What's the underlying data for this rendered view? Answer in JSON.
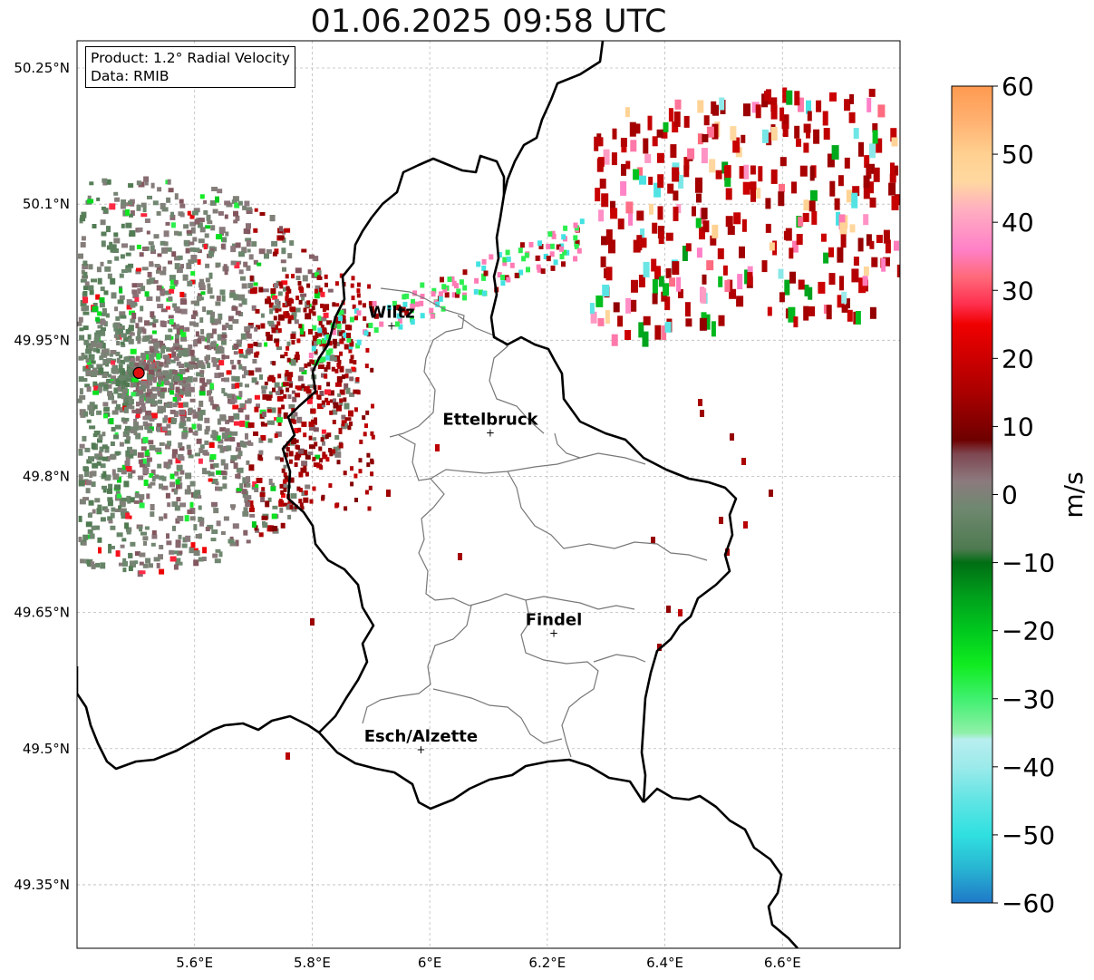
{
  "title": "01.06.2025 09:58 UTC",
  "info": {
    "product": "Product: 1.2° Radial Velocity",
    "data": "Data: RMIB"
  },
  "map": {
    "lon_range": [
      5.4,
      6.8
    ],
    "lat_range": [
      49.28,
      50.28
    ],
    "gridlines": true,
    "x_ticks": [
      {
        "value": 5.6,
        "label": "5.6°E"
      },
      {
        "value": 5.8,
        "label": "5.8°E"
      },
      {
        "value": 6.0,
        "label": "6°E"
      },
      {
        "value": 6.2,
        "label": "6.2°E"
      },
      {
        "value": 6.4,
        "label": "6.4°E"
      },
      {
        "value": 6.6,
        "label": "6.6°E"
      }
    ],
    "y_ticks": [
      {
        "value": 50.25,
        "label": "50.25°N"
      },
      {
        "value": 50.1,
        "label": "50.1°N"
      },
      {
        "value": 49.95,
        "label": "49.95°N"
      },
      {
        "value": 49.8,
        "label": "49.8°N"
      },
      {
        "value": 49.65,
        "label": "49.65°N"
      },
      {
        "value": 49.5,
        "label": "49.5°N"
      },
      {
        "value": 49.35,
        "label": "49.35°N"
      }
    ],
    "radar_site": {
      "lon": 5.505,
      "lat": 49.914,
      "color": "#e01010"
    },
    "cities": [
      {
        "name": "Wiltz",
        "lon": 5.935,
        "lat": 49.966
      },
      {
        "name": "Ettelbruck",
        "lon": 6.103,
        "lat": 49.848
      },
      {
        "name": "Findel",
        "lon": 6.211,
        "lat": 49.627
      },
      {
        "name": "Esch/Alzette",
        "lon": 5.985,
        "lat": 49.499
      }
    ]
  },
  "colorbar": {
    "label": "m/s",
    "min": -60,
    "max": 60,
    "ticks": [
      {
        "value": 60,
        "label": "60"
      },
      {
        "value": 50,
        "label": "50"
      },
      {
        "value": 40,
        "label": "40"
      },
      {
        "value": 30,
        "label": "30"
      },
      {
        "value": 20,
        "label": "20"
      },
      {
        "value": 10,
        "label": "10"
      },
      {
        "value": 0,
        "label": "0"
      },
      {
        "value": -10,
        "label": "−10"
      },
      {
        "value": -20,
        "label": "−20"
      },
      {
        "value": -30,
        "label": "−30"
      },
      {
        "value": -40,
        "label": "−40"
      },
      {
        "value": -50,
        "label": "−50"
      },
      {
        "value": -60,
        "label": "−60"
      }
    ],
    "stops": [
      {
        "value": -60,
        "color": "#1f78c8"
      },
      {
        "value": -55,
        "color": "#28b4d2"
      },
      {
        "value": -50,
        "color": "#30e0e0"
      },
      {
        "value": -45,
        "color": "#60e4e4"
      },
      {
        "value": -40,
        "color": "#9ceaea"
      },
      {
        "value": -36,
        "color": "#b8eef0"
      },
      {
        "value": -35,
        "color": "#90f0a8"
      },
      {
        "value": -30,
        "color": "#40f070"
      },
      {
        "value": -25,
        "color": "#10ec20"
      },
      {
        "value": -20,
        "color": "#00c81e"
      },
      {
        "value": -15,
        "color": "#00a01c"
      },
      {
        "value": -10,
        "color": "#006e14"
      },
      {
        "value": -8,
        "color": "#4e7a50"
      },
      {
        "value": -2,
        "color": "#6f8870"
      },
      {
        "value": 2,
        "color": "#8c7a7e"
      },
      {
        "value": 6,
        "color": "#7e4650"
      },
      {
        "value": 8,
        "color": "#6e0000"
      },
      {
        "value": 15,
        "color": "#aa0000"
      },
      {
        "value": 25,
        "color": "#f00000"
      },
      {
        "value": 28,
        "color": "#ff3050"
      },
      {
        "value": 32,
        "color": "#ff6a7a"
      },
      {
        "value": 36,
        "color": "#ff80c8"
      },
      {
        "value": 42,
        "color": "#ffb0c0"
      },
      {
        "value": 46,
        "color": "#ffd8a0"
      },
      {
        "value": 50,
        "color": "#ffd090"
      },
      {
        "value": 55,
        "color": "#ffb070"
      },
      {
        "value": 60,
        "color": "#ff9a50"
      }
    ]
  }
}
